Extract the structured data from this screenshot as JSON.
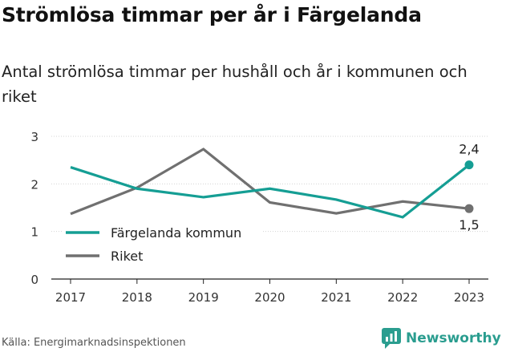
{
  "title": "Strömlösa timmar per år i Färgelanda",
  "subtitle": "Antal strömlösa timmar per hushåll och år i kommunen och riket",
  "source": "Källa: Energimarknadsinspektionen",
  "brand": {
    "name": "Newsworthy",
    "icon": "newsworthy-logo-icon",
    "color": "#2a9d8f"
  },
  "chart_data": {
    "type": "line",
    "title": "Strömlösa timmar per år i Färgelanda",
    "subtitle": "Antal strömlösa timmar per hushåll och år i kommunen och riket",
    "xlabel": "",
    "ylabel": "",
    "categories": [
      "2017",
      "2018",
      "2019",
      "2020",
      "2021",
      "2022",
      "2023"
    ],
    "ylim": [
      0,
      3
    ],
    "yticks": [
      "0",
      "1",
      "2",
      "3"
    ],
    "grid": true,
    "legend_position": "bottom-left",
    "series": [
      {
        "name": "Färgelanda kommun",
        "color": "#159e94",
        "values": [
          2.35,
          1.9,
          1.72,
          1.9,
          1.67,
          1.3,
          2.4
        ],
        "end_label": "2,4"
      },
      {
        "name": "Riket",
        "color": "#707070",
        "values": [
          1.37,
          1.92,
          2.73,
          1.61,
          1.38,
          1.63,
          1.48
        ],
        "end_label": "1,5"
      }
    ]
  }
}
